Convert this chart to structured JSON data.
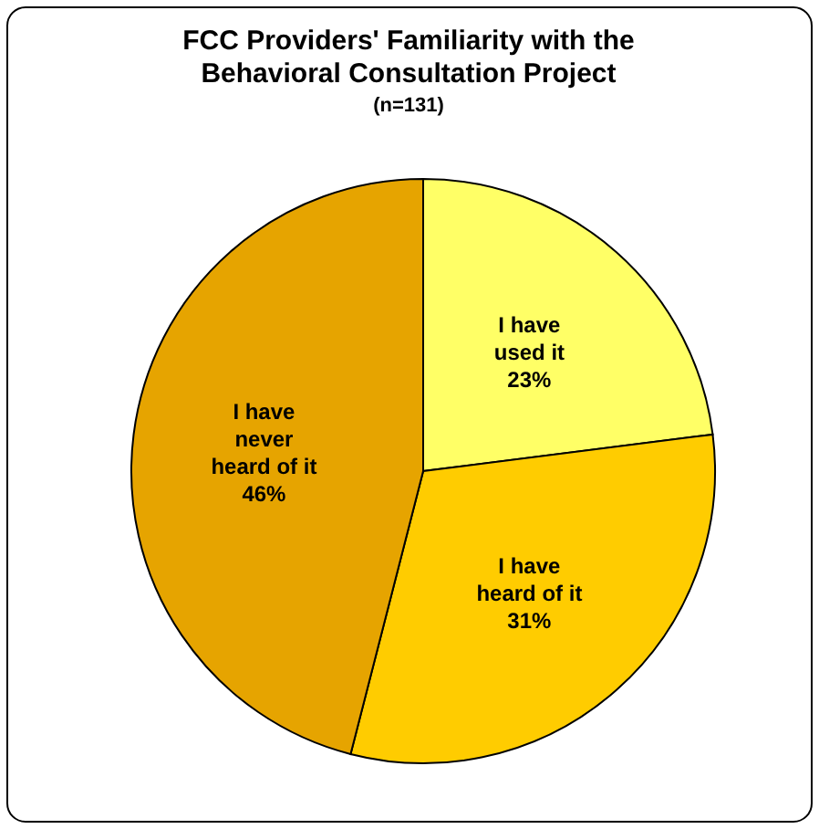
{
  "chart_data": {
    "type": "pie",
    "title": "FCC Providers' Familiarity with the Behavioral Consultation Project",
    "subtitle": "(n=131)",
    "categories": [
      "I have used it",
      "I have heard of it",
      "I have never heard of it"
    ],
    "values": [
      23,
      31,
      46
    ],
    "colors": [
      "#ffff66",
      "#ffcc00",
      "#e6a400"
    ],
    "value_labels": [
      "23%",
      "31%",
      "46%"
    ]
  }
}
